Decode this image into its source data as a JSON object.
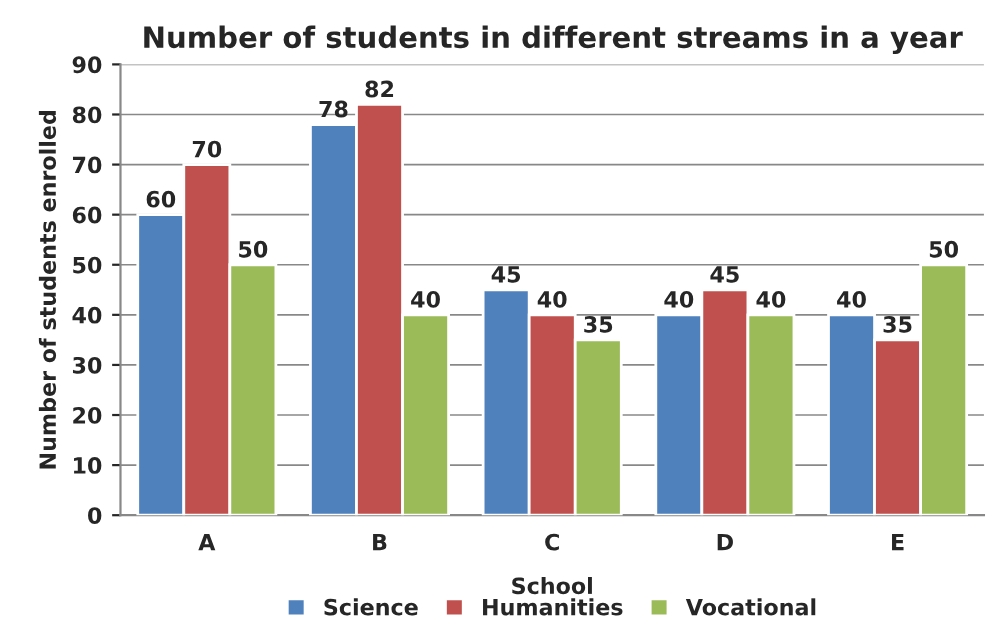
{
  "chart_data": {
    "type": "bar",
    "title": "Number of students in different streams in a year",
    "xlabel": "School",
    "ylabel": "Number of students enrolled",
    "categories": [
      "A",
      "B",
      "C",
      "D",
      "E"
    ],
    "series": [
      {
        "name": "Science",
        "color": "#4f81bd",
        "values": [
          60,
          78,
          45,
          40,
          40
        ]
      },
      {
        "name": "Humanities",
        "color": "#c0504d",
        "values": [
          70,
          82,
          40,
          45,
          35
        ]
      },
      {
        "name": "Vocational",
        "color": "#9bbb59",
        "values": [
          50,
          40,
          35,
          40,
          50
        ]
      }
    ],
    "ylim": [
      0,
      90
    ],
    "yticks": [
      0,
      10,
      20,
      30,
      40,
      50,
      60,
      70,
      80,
      90
    ],
    "grid": "y",
    "legend": "bottom",
    "data_labels": true
  }
}
